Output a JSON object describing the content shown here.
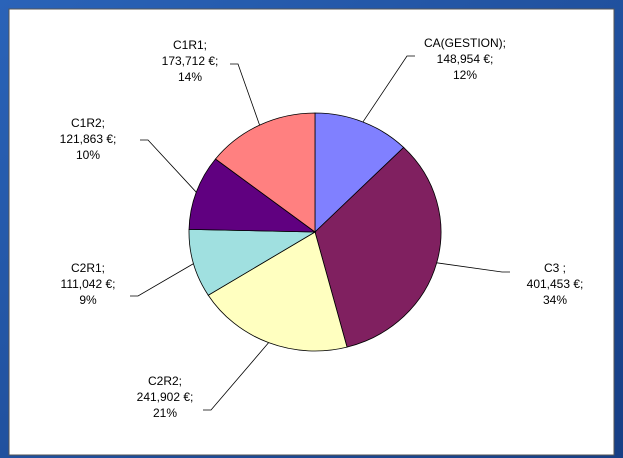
{
  "chart_data": {
    "type": "pie",
    "categories": [
      "CA(GESTION);",
      "C3 ;",
      "C2R2;",
      "C2R1;",
      "C1R2;",
      "C1R1;"
    ],
    "values": [
      148954,
      401453,
      241902,
      111042,
      121863,
      173712
    ],
    "value_labels": [
      "148,954 €;",
      "401,453 €;",
      "241,902 €;",
      "111,042 €;",
      "121,863 €;",
      "173,712 €;"
    ],
    "percent_labels": [
      "12%",
      "34%",
      "21%",
      "9%",
      "10%",
      "14%"
    ],
    "colors": [
      "#8080ff",
      "#802060",
      "#ffffc0",
      "#a0e0e0",
      "#600080",
      "#ff8080"
    ]
  }
}
